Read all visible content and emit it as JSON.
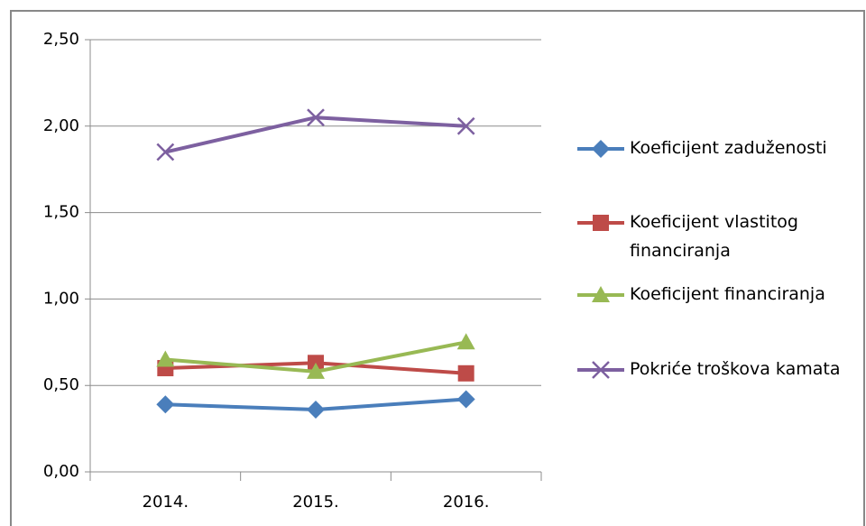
{
  "chart_data": {
    "type": "line",
    "categories": [
      "2014.",
      "2015.",
      "2016."
    ],
    "series": [
      {
        "name": "Koeficijent zaduženosti",
        "color": "#4a7ebb",
        "marker": "diamond",
        "values": [
          0.39,
          0.36,
          0.42
        ]
      },
      {
        "name": "Koeficijent vlastitog financiranja",
        "color": "#be4b48",
        "marker": "square",
        "values": [
          0.6,
          0.63,
          0.57
        ]
      },
      {
        "name": "Koeficijent financiranja",
        "color": "#98b954",
        "marker": "triangle",
        "values": [
          0.65,
          0.58,
          0.75
        ]
      },
      {
        "name": "Pokriće troškova kamata",
        "color": "#7d60a0",
        "marker": "x",
        "values": [
          1.85,
          2.05,
          2.0
        ]
      }
    ],
    "ylim": [
      0,
      2.5
    ],
    "yticks": [
      {
        "value": 0,
        "label": "0,00"
      },
      {
        "value": 0.5,
        "label": "0,50"
      },
      {
        "value": 1,
        "label": "1,00"
      },
      {
        "value": 1.5,
        "label": "1,50"
      },
      {
        "value": 2,
        "label": "2,00"
      },
      {
        "value": 2.5,
        "label": "2,50"
      }
    ],
    "grid": true,
    "legend": "right"
  }
}
